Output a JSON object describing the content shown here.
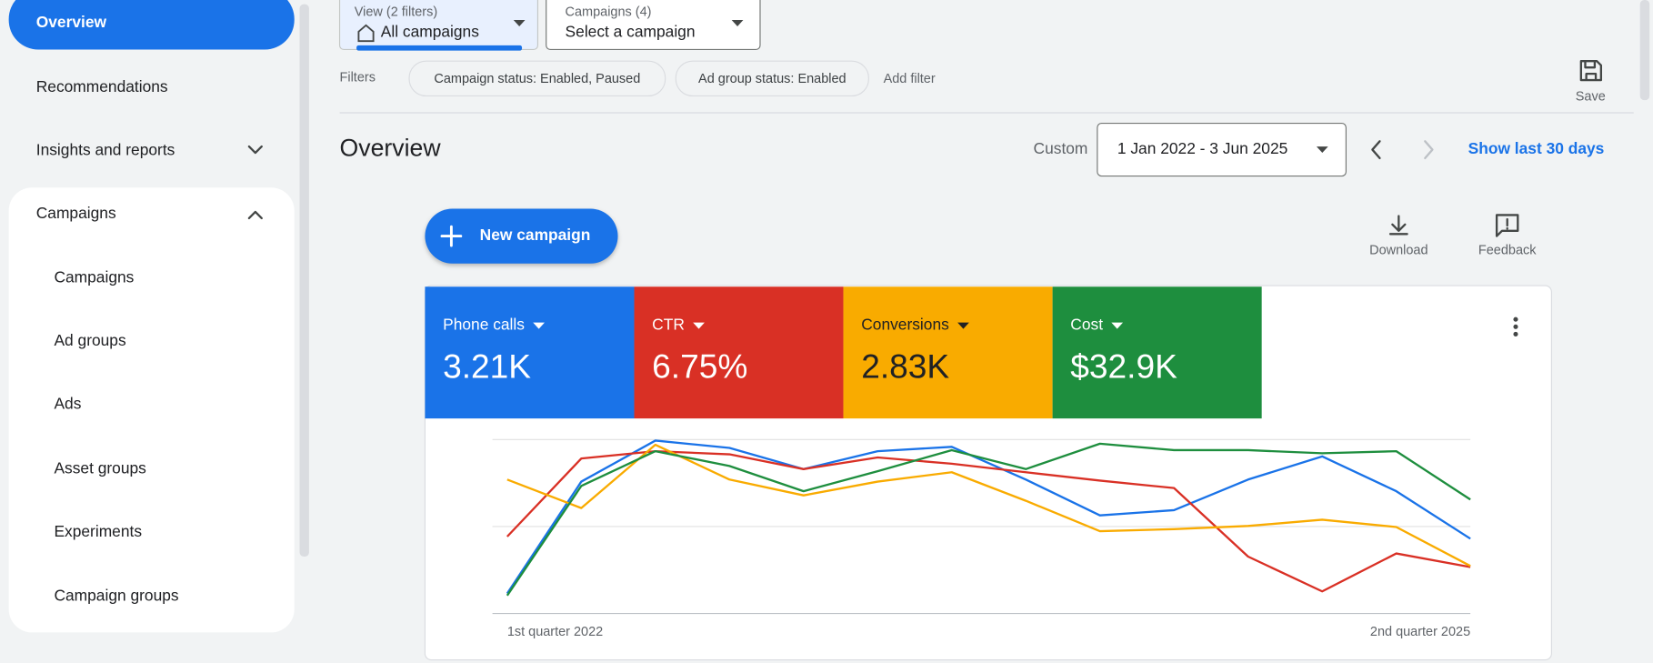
{
  "sidebar": {
    "items": [
      "Overview",
      "Recommendations",
      "Insights and reports",
      "Campaigns"
    ],
    "sub_items": [
      "Campaigns",
      "Ad groups",
      "Ads",
      "Asset groups",
      "Experiments",
      "Campaign groups"
    ]
  },
  "toolbar": {
    "view_label": "View (2 filters)",
    "view_value": "All campaigns",
    "campaigns_label": "Campaigns (4)",
    "campaigns_value": "Select a campaign",
    "filters_label": "Filters",
    "filters": [
      "Campaign status: Enabled, Paused",
      "Ad group status: Enabled"
    ],
    "add_filter": "Add filter",
    "save": "Save"
  },
  "header": {
    "title": "Overview",
    "range_label": "Custom",
    "date_range": "1 Jan 2022 - 3 Jun 2025",
    "show_last": "Show last 30 days"
  },
  "actions": {
    "new_campaign": "New campaign",
    "download": "Download",
    "feedback": "Feedback"
  },
  "scorecards": [
    "3.21K",
    "6.75%",
    "2.83K",
    "$32.9K"
  ],
  "chart_data": {
    "type": "line",
    "categories": [
      "1st quarter 2022",
      null,
      null,
      null,
      null,
      null,
      null,
      null,
      null,
      null,
      null,
      null,
      null,
      "2nd quarter 2025"
    ],
    "ylim": [
      0,
      100
    ],
    "yticks": [
      0,
      50,
      100
    ],
    "grid": true,
    "series": [
      {
        "name": "Phone calls",
        "color": "#1a73e8",
        "values": [
          11.5,
          75.8,
          99.4,
          95.2,
          83.0,
          93.3,
          95.8,
          77.0,
          56.4,
          59.4,
          77.0,
          90.3,
          70.3,
          43.0
        ]
      },
      {
        "name": "CTR",
        "color": "#d93025",
        "values": [
          44.2,
          89.1,
          93.3,
          91.5,
          83.0,
          89.7,
          86.1,
          81.2,
          76.4,
          72.1,
          32.7,
          12.7,
          34.5,
          26.7
        ]
      },
      {
        "name": "Conversions",
        "color": "#f9ab00",
        "values": [
          77.0,
          60.6,
          97.0,
          77.0,
          67.9,
          75.8,
          81.2,
          64.8,
          47.3,
          48.5,
          50.3,
          53.9,
          49.7,
          27.3
        ]
      },
      {
        "name": "Cost",
        "color": "#1e8e3e",
        "values": [
          10.3,
          73.3,
          93.3,
          84.8,
          70.3,
          81.8,
          93.9,
          83.0,
          97.6,
          93.9,
          93.9,
          92.1,
          93.3,
          65.5
        ]
      }
    ]
  }
}
